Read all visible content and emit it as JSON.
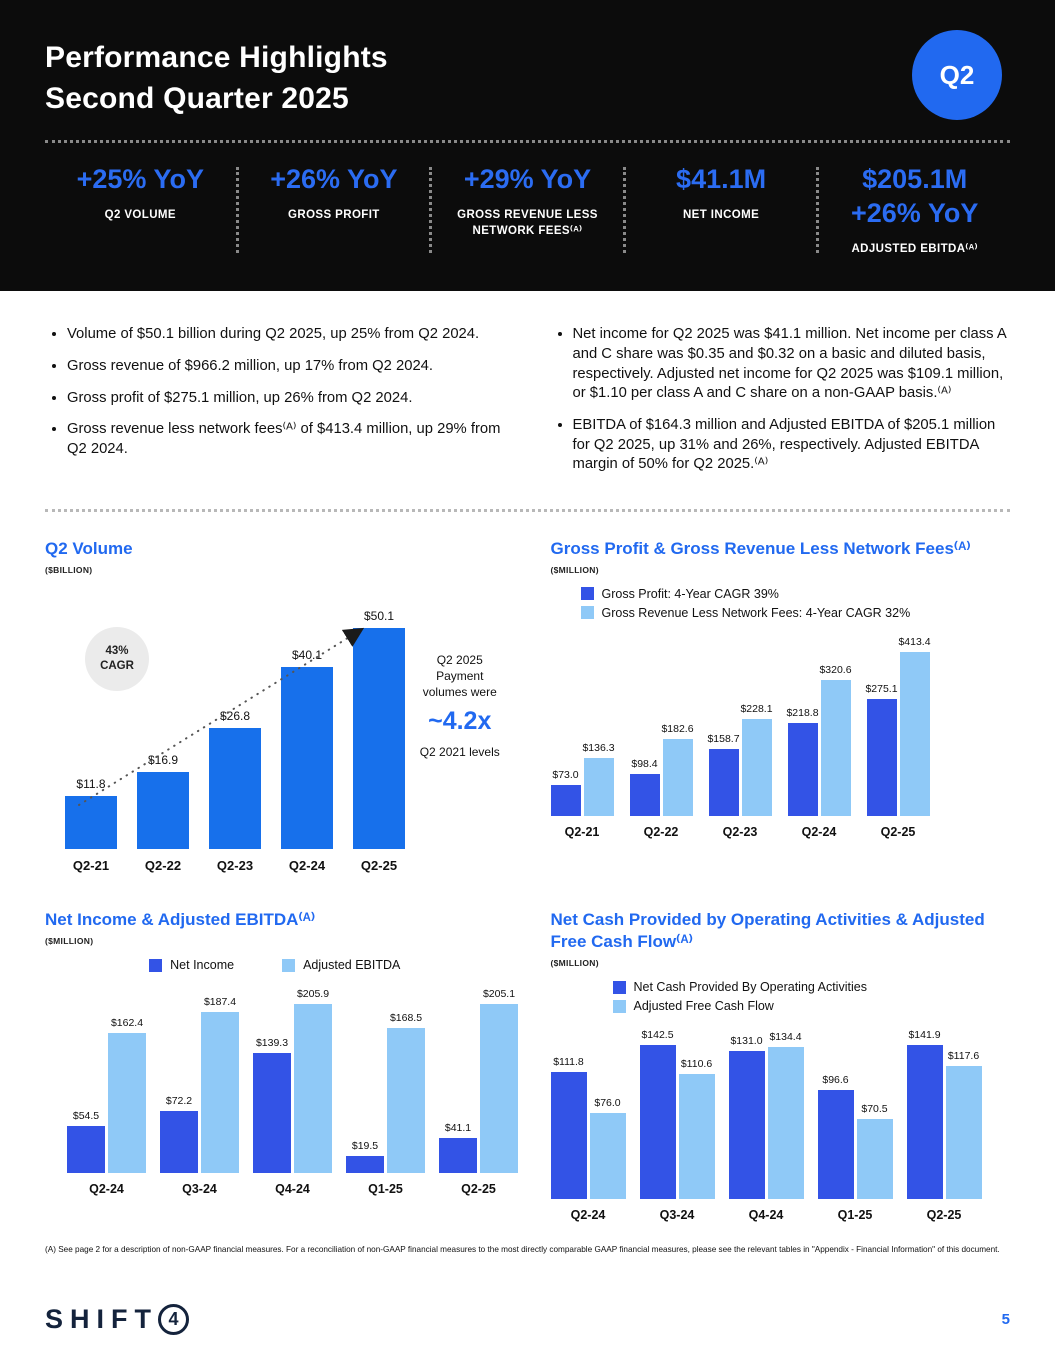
{
  "page": {
    "title_line1": "Performance Highlights",
    "title_line2": "Second Quarter 2025",
    "badge": "Q2",
    "page_number": "5",
    "logo_text": "SHIFT",
    "logo_digit": "4"
  },
  "colors": {
    "accent_blue": "#2169f0",
    "volume_bar_blue": "#1770eb",
    "series_dark_blue": "#3353e6",
    "series_light_blue": "#8fc9f7",
    "header_black": "#0c0c0c"
  },
  "kpis": [
    {
      "value": "+25% YoY",
      "label": "Q2 VOLUME"
    },
    {
      "value": "+26% YoY",
      "label": "GROSS PROFIT"
    },
    {
      "value": "+29% YoY",
      "label": "GROSS REVENUE LESS NETWORK FEES⁽ᴬ⁾"
    },
    {
      "value": "$41.1M",
      "label": "NET INCOME"
    },
    {
      "value": "$205.1M",
      "value2": "+26% YoY",
      "label": "ADJUSTED EBITDA⁽ᴬ⁾"
    }
  ],
  "bullets_left": [
    "Volume of $50.1 billion during Q2 2025, up 25% from Q2 2024.",
    "Gross revenue of $966.2 million, up 17% from Q2 2024.",
    "Gross profit of $275.1 million, up 26% from Q2 2024.",
    "Gross revenue less network fees⁽ᴬ⁾ of $413.4 million, up 29% from Q2 2024."
  ],
  "bullets_right": [
    "Net income for Q2 2025 was $41.1 million. Net income per class A and C share was $0.35 and $0.32 on a basic and diluted basis, respectively. Adjusted net income for Q2 2025 was $109.1 million, or $1.10 per class A and C share on a non-GAAP basis.⁽ᴬ⁾",
    "EBITDA of $164.3 million and Adjusted EBITDA of $205.1 million for Q2 2025, up 31% and 26%, respectively. Adjusted EBITDA margin of 50% for Q2 2025.⁽ᴬ⁾"
  ],
  "footnote": "(A) See page 2 for a description of non-GAAP financial measures. For a reconciliation of non-GAAP financial measures to the most directly comparable GAAP financial measures, please see the relevant tables in \"Appendix - Financial Information\" of this document.",
  "chart_data": [
    {
      "type": "bar",
      "title": "Q2 Volume",
      "units": "($BILLION)",
      "categories": [
        "Q2-21",
        "Q2-22",
        "Q2-23",
        "Q2-24",
        "Q2-25"
      ],
      "series": [
        {
          "name": "Q2 Volume",
          "color": "#1770eb",
          "values": [
            11.8,
            16.9,
            26.8,
            40.1,
            50.1
          ],
          "labels": [
            "$11.8",
            "$16.9",
            "$26.8",
            "$40.1",
            "$50.1"
          ]
        }
      ],
      "ymax": 53,
      "legend_position": "none",
      "grid": false,
      "annotations": {
        "cagr_bubble": "43% CAGR",
        "note_top": "Q2 2025 Payment volumes were",
        "note_big": "~4.2x",
        "note_bottom": "Q2 2021 levels"
      }
    },
    {
      "type": "bar",
      "title": "Gross Profit & Gross Revenue Less Network Fees⁽ᴬ⁾",
      "units": "($MILLION)",
      "categories": [
        "Q2-21",
        "Q2-22",
        "Q2-23",
        "Q2-24",
        "Q2-25"
      ],
      "series": [
        {
          "name": "Gross Profit: 4-Year CAGR 39%",
          "color": "#3353e6",
          "values": [
            73.0,
            98.4,
            158.7,
            218.8,
            275.1
          ],
          "labels": [
            "$73.0",
            "$98.4",
            "$158.7",
            "$218.8",
            "$275.1"
          ]
        },
        {
          "name": "Gross Revenue Less Network Fees: 4-Year CAGR 32%",
          "color": "#8fc9f7",
          "values": [
            136.3,
            182.6,
            228.1,
            320.6,
            413.4
          ],
          "labels": [
            "$136.3",
            "$182.6",
            "$228.1",
            "$320.6",
            "$413.4"
          ]
        }
      ],
      "ymax": 425,
      "legend_position": "top-left",
      "grid": false
    },
    {
      "type": "bar",
      "title": "Net Income & Adjusted EBITDA⁽ᴬ⁾",
      "units": "($MILLION)",
      "categories": [
        "Q2-24",
        "Q3-24",
        "Q4-24",
        "Q1-25",
        "Q2-25"
      ],
      "series": [
        {
          "name": "Net Income",
          "color": "#3353e6",
          "values": [
            54.5,
            72.2,
            139.3,
            19.5,
            41.1
          ],
          "labels": [
            "$54.5",
            "$72.2",
            "$139.3",
            "$19.5",
            "$41.1"
          ]
        },
        {
          "name": "Adjusted EBITDA",
          "color": "#8fc9f7",
          "values": [
            162.4,
            187.4,
            205.9,
            168.5,
            205.1
          ],
          "labels": [
            "$162.4",
            "$187.4",
            "$205.9",
            "$168.5",
            "$205.1"
          ]
        }
      ],
      "ymax": 215,
      "legend_position": "top-center",
      "grid": false
    },
    {
      "type": "bar",
      "title": "Net Cash Provided by Operating Activities & Adjusted Free Cash Flow⁽ᴬ⁾",
      "units": "($MILLION)",
      "categories": [
        "Q2-24",
        "Q3-24",
        "Q4-24",
        "Q1-25",
        "Q2-25"
      ],
      "series": [
        {
          "name": "Net Cash Provided By Operating Activities",
          "color": "#3353e6",
          "values": [
            111.8,
            142.5,
            131.0,
            96.6,
            141.9
          ],
          "labels": [
            "$111.8",
            "$142.5",
            "$131.0",
            "$96.6",
            "$141.9"
          ]
        },
        {
          "name": "Adjusted Free Cash Flow",
          "color": "#8fc9f7",
          "values": [
            76.0,
            110.6,
            134.4,
            70.5,
            117.6
          ],
          "labels": [
            "$76.0",
            "$110.6",
            "$134.4",
            "$70.5",
            "$117.6"
          ]
        }
      ],
      "ymax": 150,
      "legend_position": "top-left",
      "grid": false
    }
  ]
}
